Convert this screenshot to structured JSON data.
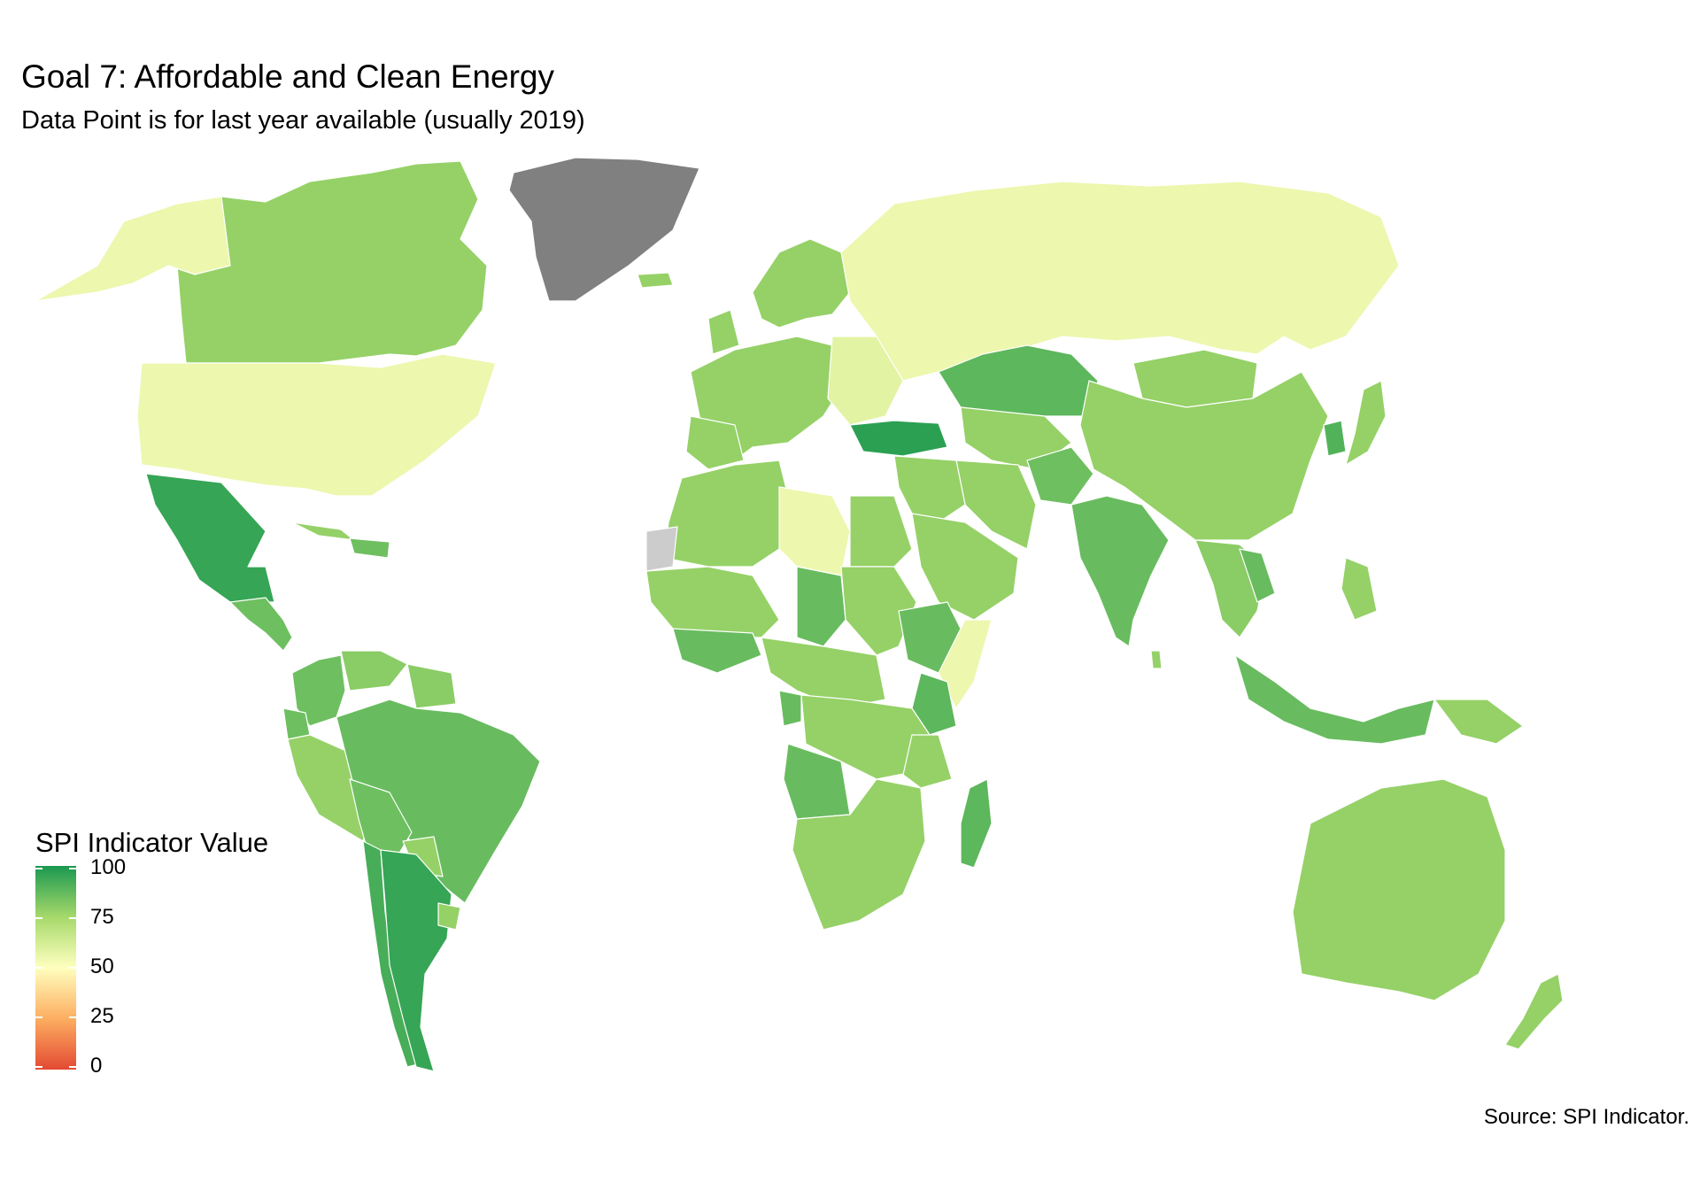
{
  "title": "Goal 7: Affordable and Clean Energy",
  "subtitle": "Data Point is for last year available (usually 2019)",
  "source": "Source: SPI Indicator.",
  "legend": {
    "title": "SPI Indicator Value",
    "ticks": [
      "100",
      "75",
      "50",
      "25",
      "0"
    ],
    "colors": {
      "v100": "#1a9850",
      "v75": "#a6d96a",
      "v50": "#ffffbf",
      "v25": "#fdae61",
      "v0": "#e34a33"
    }
  },
  "colors": {
    "no_data": "#808080",
    "missing": "#cccccc",
    "border": "#ffffff"
  },
  "chart_data": {
    "type": "choropleth",
    "scale_range": [
      0,
      100
    ],
    "regions": [
      {
        "name": "Canada",
        "value": 78
      },
      {
        "name": "United States",
        "value": 55
      },
      {
        "name": "Alaska",
        "value": 55
      },
      {
        "name": "Mexico",
        "value": 95
      },
      {
        "name": "Central America",
        "value": 85
      },
      {
        "name": "Cuba",
        "value": 78
      },
      {
        "name": "Hispaniola",
        "value": 85
      },
      {
        "name": "Greenland",
        "value": null
      },
      {
        "name": "Iceland",
        "value": 78
      },
      {
        "name": "Colombia",
        "value": 85
      },
      {
        "name": "Venezuela",
        "value": 80
      },
      {
        "name": "Guianas",
        "value": 80
      },
      {
        "name": "Ecuador",
        "value": 85
      },
      {
        "name": "Peru",
        "value": 78
      },
      {
        "name": "Brazil",
        "value": 86
      },
      {
        "name": "Bolivia",
        "value": 85
      },
      {
        "name": "Paraguay",
        "value": 78
      },
      {
        "name": "Chile",
        "value": 92
      },
      {
        "name": "Argentina",
        "value": 95
      },
      {
        "name": "Uruguay",
        "value": 78
      },
      {
        "name": "Western Europe",
        "value": 78
      },
      {
        "name": "Scandinavia",
        "value": 78
      },
      {
        "name": "Eastern Europe",
        "value": 58
      },
      {
        "name": "UK",
        "value": 78
      },
      {
        "name": "Iberia",
        "value": 78
      },
      {
        "name": "Russia",
        "value": 55
      },
      {
        "name": "Kazakhstan",
        "value": 88
      },
      {
        "name": "Turkey",
        "value": 97
      },
      {
        "name": "Central Asia",
        "value": 78
      },
      {
        "name": "Afghanistan",
        "value": 85
      },
      {
        "name": "Iran",
        "value": 78
      },
      {
        "name": "Middle East",
        "value": 78
      },
      {
        "name": "Arabian Peninsula",
        "value": 78
      },
      {
        "name": "India",
        "value": 86
      },
      {
        "name": "Sri Lanka",
        "value": 78
      },
      {
        "name": "Mongolia",
        "value": 78
      },
      {
        "name": "China",
        "value": 78
      },
      {
        "name": "Korea",
        "value": 90
      },
      {
        "name": "Japan",
        "value": 78
      },
      {
        "name": "Southeast Asia",
        "value": 80
      },
      {
        "name": "Laos",
        "value": 86
      },
      {
        "name": "Indonesia",
        "value": 86
      },
      {
        "name": "Papua New Guinea",
        "value": 78
      },
      {
        "name": "Philippines",
        "value": 78
      },
      {
        "name": "Australia",
        "value": 78
      },
      {
        "name": "New Zealand",
        "value": 78
      },
      {
        "name": "North Africa",
        "value": 78
      },
      {
        "name": "Libya",
        "value": 55
      },
      {
        "name": "Western Sahara",
        "value": null
      },
      {
        "name": "Egypt",
        "value": 78
      },
      {
        "name": "West Africa",
        "value": 78
      },
      {
        "name": "Coastal West Africa",
        "value": 86
      },
      {
        "name": "Chad",
        "value": 86
      },
      {
        "name": "Central Africa",
        "value": 78
      },
      {
        "name": "Sudan",
        "value": 78
      },
      {
        "name": "Ethiopia",
        "value": 86
      },
      {
        "name": "Somalia",
        "value": 55
      },
      {
        "name": "Kenya",
        "value": 88
      },
      {
        "name": "DR Congo",
        "value": 78
      },
      {
        "name": "Gabon",
        "value": 86
      },
      {
        "name": "Tanzania",
        "value": 78
      },
      {
        "name": "Angola",
        "value": 86
      },
      {
        "name": "Southern Africa",
        "value": 78
      },
      {
        "name": "Madagascar",
        "value": 88
      }
    ]
  }
}
